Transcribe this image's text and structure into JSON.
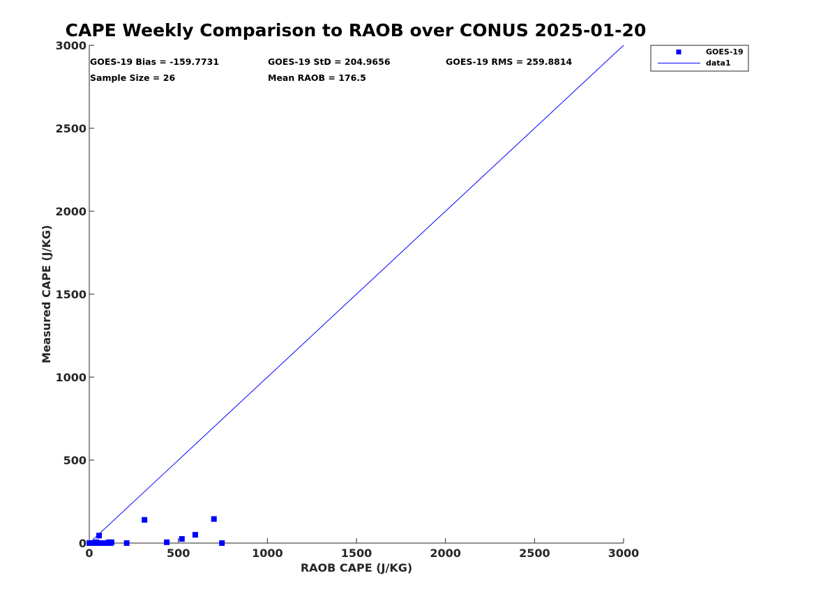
{
  "chart_data": {
    "type": "scatter",
    "title": "CAPE Weekly Comparison to RAOB over CONUS 2025-01-20",
    "xlabel": "RAOB CAPE (J/KG)",
    "ylabel": "Measured CAPE (J/KG)",
    "xlim": [
      0,
      3000
    ],
    "ylim": [
      0,
      3000
    ],
    "xticks": [
      "0",
      "500",
      "1000",
      "1500",
      "2000",
      "2500",
      "3000"
    ],
    "yticks": [
      "0",
      "500",
      "1000",
      "1500",
      "2000",
      "2500",
      "3000"
    ],
    "grid": false,
    "legend_position": "outside-top-right",
    "stats": [
      {
        "text": "GOES-19 Bias = -159.7731"
      },
      {
        "text": "GOES-19 StD = 204.9656"
      },
      {
        "text": "GOES-19 RMS = 259.8814"
      },
      {
        "text": "Sample Size = 26"
      },
      {
        "text": "Mean RAOB = 176.5"
      }
    ],
    "series": [
      {
        "name": "GOES-19",
        "kind": "scatter",
        "marker": "square",
        "color": "#0000ff",
        "x": [
          0,
          5,
          10,
          15,
          20,
          30,
          40,
          50,
          55,
          60,
          70,
          80,
          90,
          100,
          110,
          120,
          125,
          210,
          310,
          435,
          520,
          595,
          700,
          745,
          25,
          45
        ],
        "y": [
          0,
          0,
          0,
          0,
          0,
          0,
          5,
          0,
          45,
          0,
          0,
          0,
          0,
          0,
          5,
          0,
          5,
          0,
          140,
          5,
          25,
          50,
          145,
          0,
          0,
          0
        ]
      },
      {
        "name": "data1",
        "kind": "line",
        "color": "#0000ff",
        "x": [
          0,
          3000
        ],
        "y": [
          0,
          3000
        ]
      }
    ]
  }
}
